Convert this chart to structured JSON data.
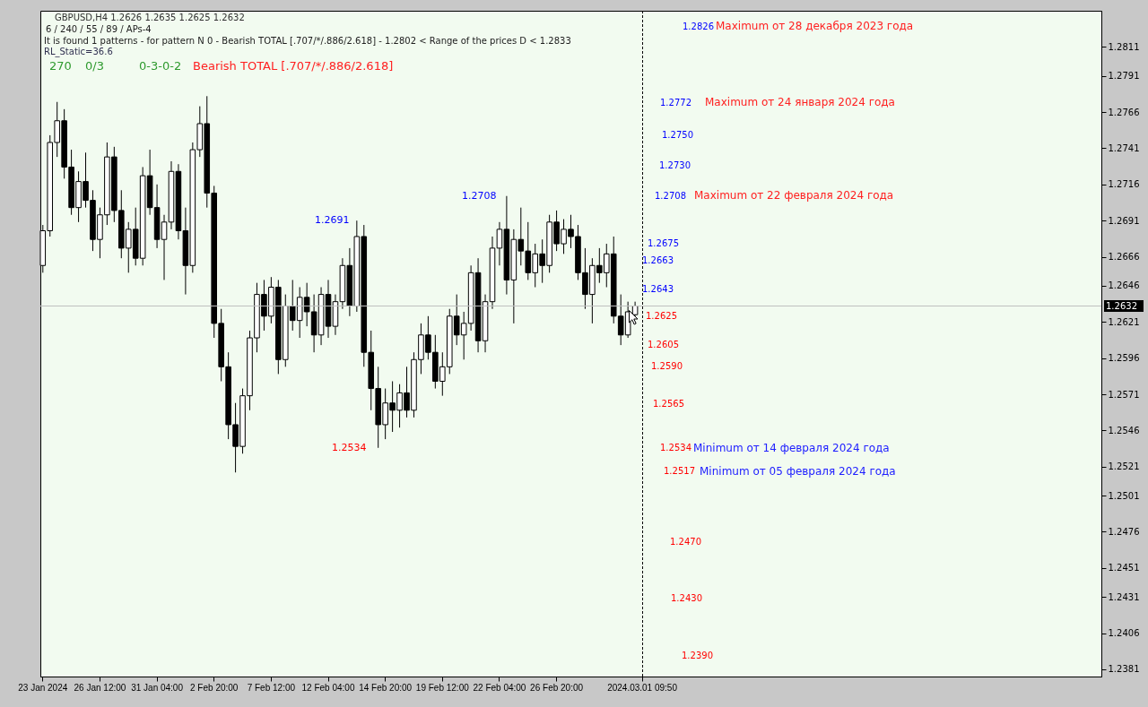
{
  "chart_data": {
    "type": "candlestick",
    "title": "GBPUSD,H4  1.2626 1.2635 1.2625 1.2632",
    "categories": [
      "23 Jan 2024",
      null,
      null,
      null,
      null,
      null,
      null,
      null,
      "26 Jan 12:00",
      null,
      null,
      null,
      null,
      null,
      null,
      null,
      "31 Jan 04:00",
      null,
      null,
      null,
      null,
      null,
      null,
      null,
      "2 Feb 20:00",
      null,
      null,
      null,
      null,
      null,
      null,
      null,
      "7 Feb 12:00",
      null,
      null,
      null,
      null,
      null,
      null,
      null,
      "12 Feb 04:00",
      null,
      null,
      null,
      null,
      null,
      null,
      null,
      "14 Feb 20:00",
      null,
      null,
      null,
      null,
      null,
      null,
      null,
      "19 Feb 12:00",
      null,
      null,
      null,
      null,
      null,
      null,
      null,
      "22 Feb 04:00",
      null,
      null,
      null,
      null,
      null,
      null,
      null,
      "26 Feb 20:00",
      null,
      null,
      null,
      null,
      null,
      null,
      null,
      null,
      null,
      null,
      null,
      "2024.03.01 09:50",
      null,
      null,
      null,
      null,
      null,
      null,
      null,
      null,
      null,
      null,
      null,
      null,
      null,
      null,
      null,
      null,
      null,
      null,
      null,
      null,
      null,
      null,
      null,
      null,
      null,
      null,
      null,
      null,
      null,
      null,
      null,
      null,
      null,
      null,
      null,
      null,
      null,
      null,
      null,
      null,
      null,
      null,
      null,
      null,
      null,
      null,
      null,
      null,
      null,
      null,
      null,
      null,
      null,
      null,
      null,
      null,
      null,
      null,
      null,
      null,
      null,
      null,
      null,
      null
    ],
    "ohlc": [
      [
        1.266,
        1.2688,
        1.2655,
        1.2684
      ],
      [
        1.2684,
        1.275,
        1.268,
        1.2745
      ],
      [
        1.2745,
        1.2773,
        1.2735,
        1.276
      ],
      [
        1.276,
        1.2768,
        1.272,
        1.2728
      ],
      [
        1.2728,
        1.274,
        1.2695,
        1.27
      ],
      [
        1.27,
        1.2725,
        1.269,
        1.2718
      ],
      [
        1.2718,
        1.2738,
        1.27,
        1.2705
      ],
      [
        1.2705,
        1.2712,
        1.267,
        1.2678
      ],
      [
        1.2678,
        1.27,
        1.2665,
        1.2695
      ],
      [
        1.2695,
        1.2745,
        1.2688,
        1.2735
      ],
      [
        1.2735,
        1.2742,
        1.269,
        1.2698
      ],
      [
        1.2698,
        1.2712,
        1.2665,
        1.2672
      ],
      [
        1.2672,
        1.269,
        1.2655,
        1.2685
      ],
      [
        1.2685,
        1.27,
        1.266,
        1.2665
      ],
      [
        1.2665,
        1.2728,
        1.266,
        1.2722
      ],
      [
        1.2722,
        1.274,
        1.2695,
        1.27
      ],
      [
        1.27,
        1.2716,
        1.2672,
        1.2678
      ],
      [
        1.2678,
        1.2695,
        1.265,
        1.269
      ],
      [
        1.269,
        1.2732,
        1.2685,
        1.2725
      ],
      [
        1.2725,
        1.273,
        1.2678,
        1.2684
      ],
      [
        1.2684,
        1.27,
        1.264,
        1.266
      ],
      [
        1.266,
        1.2745,
        1.2655,
        1.274
      ],
      [
        1.274,
        1.277,
        1.2735,
        1.2758
      ],
      [
        1.2758,
        1.2777,
        1.27,
        1.271
      ],
      [
        1.271,
        1.2715,
        1.261,
        1.262
      ],
      [
        1.262,
        1.263,
        1.258,
        1.259
      ],
      [
        1.259,
        1.26,
        1.254,
        1.255
      ],
      [
        1.255,
        1.2565,
        1.2517,
        1.2535
      ],
      [
        1.2535,
        1.2575,
        1.253,
        1.257
      ],
      [
        1.257,
        1.2615,
        1.256,
        1.261
      ],
      [
        1.261,
        1.2648,
        1.26,
        1.264
      ],
      [
        1.264,
        1.265,
        1.2615,
        1.2625
      ],
      [
        1.2625,
        1.2652,
        1.262,
        1.2645
      ],
      [
        1.2645,
        1.265,
        1.2585,
        1.2595
      ],
      [
        1.2595,
        1.264,
        1.259,
        1.2632
      ],
      [
        1.2632,
        1.265,
        1.2615,
        1.2622
      ],
      [
        1.2622,
        1.2645,
        1.261,
        1.2638
      ],
      [
        1.2638,
        1.2648,
        1.2618,
        1.2628
      ],
      [
        1.2628,
        1.264,
        1.26,
        1.2612
      ],
      [
        1.2612,
        1.2645,
        1.2605,
        1.264
      ],
      [
        1.264,
        1.265,
        1.261,
        1.2618
      ],
      [
        1.2618,
        1.264,
        1.2612,
        1.2635
      ],
      [
        1.2635,
        1.2665,
        1.263,
        1.266
      ],
      [
        1.266,
        1.2672,
        1.2625,
        1.2632
      ],
      [
        1.2632,
        1.2691,
        1.2628,
        1.268
      ],
      [
        1.268,
        1.2688,
        1.259,
        1.26
      ],
      [
        1.26,
        1.2615,
        1.256,
        1.2575
      ],
      [
        1.2575,
        1.259,
        1.2534,
        1.255
      ],
      [
        1.255,
        1.2575,
        1.254,
        1.2565
      ],
      [
        1.2565,
        1.258,
        1.2545,
        1.256
      ],
      [
        1.256,
        1.2578,
        1.2548,
        1.2572
      ],
      [
        1.2572,
        1.259,
        1.2555,
        1.256
      ],
      [
        1.256,
        1.26,
        1.2555,
        1.2595
      ],
      [
        1.2595,
        1.262,
        1.2585,
        1.2612
      ],
      [
        1.2612,
        1.2625,
        1.2595,
        1.26
      ],
      [
        1.26,
        1.2612,
        1.2575,
        1.258
      ],
      [
        1.258,
        1.26,
        1.257,
        1.259
      ],
      [
        1.259,
        1.263,
        1.2585,
        1.2625
      ],
      [
        1.2625,
        1.264,
        1.2605,
        1.2612
      ],
      [
        1.2612,
        1.2628,
        1.2595,
        1.262
      ],
      [
        1.262,
        1.266,
        1.2615,
        1.2655
      ],
      [
        1.2655,
        1.2665,
        1.26,
        1.2608
      ],
      [
        1.2608,
        1.264,
        1.26,
        1.2635
      ],
      [
        1.2635,
        1.268,
        1.263,
        1.2672
      ],
      [
        1.2672,
        1.269,
        1.266,
        1.2685
      ],
      [
        1.2685,
        1.2708,
        1.264,
        1.265
      ],
      [
        1.265,
        1.2685,
        1.262,
        1.2678
      ],
      [
        1.2678,
        1.27,
        1.266,
        1.267
      ],
      [
        1.267,
        1.269,
        1.265,
        1.2655
      ],
      [
        1.2655,
        1.2675,
        1.2645,
        1.2668
      ],
      [
        1.2668,
        1.2678,
        1.2648,
        1.266
      ],
      [
        1.266,
        1.2695,
        1.2655,
        1.269
      ],
      [
        1.269,
        1.2698,
        1.267,
        1.2675
      ],
      [
        1.2675,
        1.2692,
        1.2668,
        1.2685
      ],
      [
        1.2685,
        1.2695,
        1.2672,
        1.268
      ],
      [
        1.268,
        1.2688,
        1.265,
        1.2655
      ],
      [
        1.2655,
        1.2672,
        1.263,
        1.264
      ],
      [
        1.264,
        1.2665,
        1.262,
        1.266
      ],
      [
        1.266,
        1.2672,
        1.2648,
        1.2655
      ],
      [
        1.2655,
        1.2675,
        1.2645,
        1.2668
      ],
      [
        1.2668,
        1.268,
        1.262,
        1.2625
      ],
      [
        1.2625,
        1.264,
        1.2605,
        1.2612
      ],
      [
        1.2612,
        1.2635,
        1.261,
        1.2628
      ],
      [
        1.2626,
        1.2635,
        1.2625,
        1.2632
      ],
      null,
      null,
      null,
      null,
      null,
      null,
      null,
      null,
      null,
      null,
      null,
      null,
      null,
      null,
      null,
      null,
      null,
      null,
      null,
      null,
      null,
      null,
      null,
      null,
      null,
      null,
      null,
      null,
      null,
      null,
      null,
      null,
      null,
      null,
      null,
      null,
      null,
      null,
      null,
      null,
      null,
      null,
      null,
      null,
      null,
      null,
      null,
      null,
      null,
      null,
      null,
      null,
      null,
      null,
      null,
      null,
      null,
      null,
      null,
      null,
      null,
      null,
      null,
      null,
      null
    ],
    "ylim": [
      1.2376,
      1.2836
    ],
    "yticks": [
      1.2381,
      1.2406,
      1.2431,
      1.2451,
      1.2476,
      1.2501,
      1.2521,
      1.2546,
      1.2571,
      1.2596,
      1.2621,
      1.2646,
      1.2666,
      1.2691,
      1.2716,
      1.2741,
      1.2766,
      1.2791,
      1.2811
    ],
    "grid": false,
    "ref_lines": [
      {
        "axis": "y",
        "value": 1.2632,
        "label": "1.2632",
        "color": "#c0c0c0"
      }
    ],
    "annotations": [
      "6 / 240 / 55 / 89 / APs-4",
      "It is found 1 patterns  -  for pattern N 0 - Bearish TOTAL [.707/*/.886/2.618] - 1.2802 < Range of the prices D < 1.2833",
      "RL_Static=36.6",
      "270",
      "0/3",
      "0-3-0-2",
      "Bearish TOTAL [.707/*/.886/2.618]",
      "1.2826",
      "1.2772",
      "1.2750",
      "1.2730",
      "1.2708",
      "1.2675",
      "1.2663",
      "1.2643",
      "1.2625",
      "1.2605",
      "1.2590",
      "1.2565",
      "1.2534",
      "1.2517",
      "1.2470",
      "1.2430",
      "1.2390",
      "Maximum от 28 декабря 2023 года",
      "Maximum от 24 января 2024 года",
      "Maximum от 22 февраля 2024 года",
      "Minimum от 14 февраля 2024 года",
      "Minimum от 05 февраля 2024 года",
      "1.2691",
      "1.2708",
      "1.2534"
    ]
  }
}
